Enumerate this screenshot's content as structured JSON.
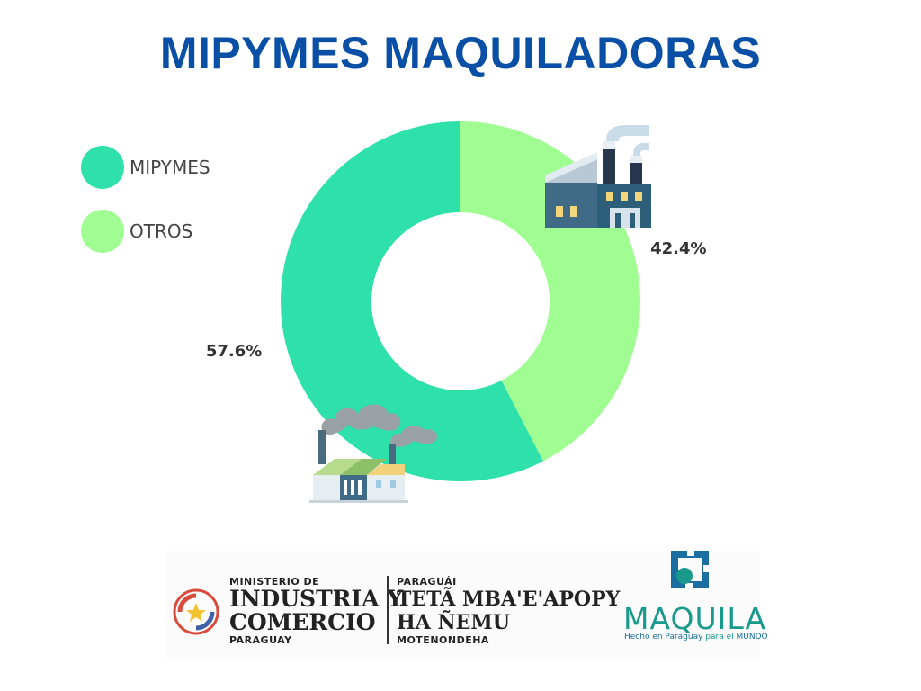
{
  "chart_data": {
    "type": "pie",
    "title": "MIPYMES MAQUILADORAS",
    "donut": true,
    "categories": [
      "MIPYMES",
      "OTROS"
    ],
    "values": [
      57.6,
      42.4
    ],
    "value_labels": [
      "57.6%",
      "42.4%"
    ],
    "colors": [
      "#2ee0aa",
      "#a0fd92"
    ],
    "legend": "left"
  },
  "icons": {
    "factory_top": "factory-icon",
    "factory_bottom": "factory-smoke-icon",
    "seal": "paraguay-seal-icon",
    "gear": "gear-icon"
  },
  "footer": {
    "ministry": {
      "line1": "MINISTERIO DE",
      "line2": "INDUSTRIA Y",
      "line3": "COMERCIO",
      "line4": "PARAGUAY"
    },
    "guarani": {
      "line1": "PARAGUÁI",
      "line2": "TETÃ MBA'E'APOPY",
      "line3": "HA ÑEMU",
      "line4": "MOTENONDEHA"
    },
    "maquila": {
      "word": "MAQUILA",
      "tag_a": "Hecho en Paraguay",
      "tag_b": "para el",
      "tag_c": "MUNDO",
      "color": "#1a9a8c"
    }
  }
}
